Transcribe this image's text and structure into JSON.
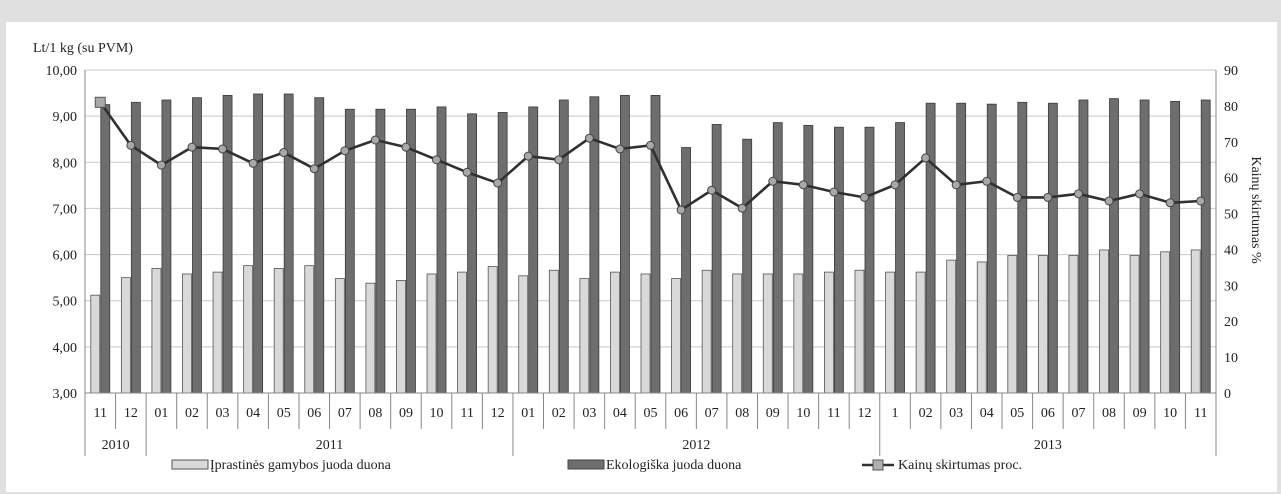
{
  "chart_data": {
    "type": "bar",
    "y_left_label": "Lt/1 kg (su PVM)",
    "y_right_label": "Kainų skirtumas %",
    "y_left_ticks": [
      "3,00",
      "4,00",
      "5,00",
      "6,00",
      "7,00",
      "8,00",
      "9,00",
      "10,00"
    ],
    "y_right_ticks": [
      "0",
      "10",
      "20",
      "30",
      "40",
      "50",
      "60",
      "70",
      "80",
      "90"
    ],
    "ylim_left": [
      3,
      10
    ],
    "ylim_right": [
      0,
      90
    ],
    "categories": [
      "11",
      "12",
      "01",
      "02",
      "03",
      "04",
      "05",
      "06",
      "07",
      "08",
      "09",
      "10",
      "11",
      "12",
      "01",
      "02",
      "03",
      "04",
      "05",
      "06",
      "07",
      "08",
      "09",
      "10",
      "11",
      "12",
      "1",
      "02",
      "03",
      "04",
      "05",
      "06",
      "07",
      "08",
      "09",
      "10",
      "11"
    ],
    "year_groups": [
      {
        "label": "2010",
        "count": 2
      },
      {
        "label": "2011",
        "count": 12
      },
      {
        "label": "2012",
        "count": 12
      },
      {
        "label": "2013",
        "count": 11
      }
    ],
    "series": [
      {
        "name": "Įprastinės gamybos juoda duona",
        "axis": "left",
        "color": "#d9d9d9",
        "values": [
          5.12,
          5.5,
          5.7,
          5.58,
          5.62,
          5.76,
          5.7,
          5.76,
          5.48,
          5.38,
          5.44,
          5.58,
          5.62,
          5.74,
          5.54,
          5.66,
          5.48,
          5.62,
          5.58,
          5.48,
          5.66,
          5.58,
          5.58,
          5.58,
          5.62,
          5.66,
          5.62,
          5.62,
          5.88,
          5.84,
          5.98,
          5.98,
          5.98,
          6.1,
          5.98,
          6.06,
          6.1
        ]
      },
      {
        "name": "Ekologiška juoda duona",
        "axis": "left",
        "color": "#6e6e6e",
        "values": [
          9.25,
          9.3,
          9.35,
          9.4,
          9.45,
          9.48,
          9.48,
          9.4,
          9.15,
          9.15,
          9.15,
          9.2,
          9.05,
          9.08,
          9.2,
          9.35,
          9.42,
          9.45,
          9.45,
          8.32,
          8.82,
          8.5,
          8.86,
          8.8,
          8.76,
          8.76,
          8.86,
          9.28,
          9.28,
          9.26,
          9.3,
          9.28,
          9.35,
          9.38,
          9.35,
          9.32,
          9.35
        ]
      },
      {
        "name": "Kainų skirtumas proc.",
        "axis": "right",
        "type": "line",
        "color": "#303030",
        "values": [
          81,
          69,
          63.5,
          68.5,
          68,
          64,
          67,
          62.5,
          67.5,
          70.5,
          68.5,
          65,
          61.5,
          58.5,
          66,
          65,
          71,
          68,
          69,
          51,
          56.5,
          51.5,
          59,
          58,
          56,
          54.5,
          58,
          65.5,
          58,
          59,
          54.5,
          54.5,
          55.5,
          53.5,
          55.5,
          53,
          53.5
        ]
      }
    ]
  }
}
